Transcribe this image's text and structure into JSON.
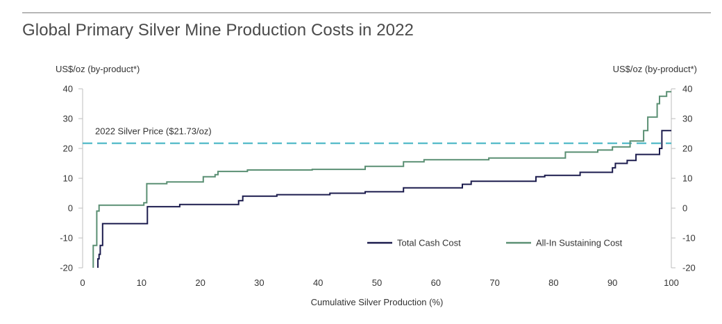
{
  "chart_data": {
    "type": "line",
    "title": "Global Primary Silver Mine Production Costs in 2022",
    "xlabel": "Cumulative Silver Production (%)",
    "ylabel_left": "US$/oz (by-product*)",
    "ylabel_right": "US$/oz (by-product*)",
    "xlim": [
      0,
      100
    ],
    "ylim": [
      -20,
      40
    ],
    "x_ticks": [
      0,
      10,
      20,
      30,
      40,
      50,
      60,
      70,
      80,
      90,
      100
    ],
    "y_ticks": [
      -20,
      -10,
      0,
      10,
      20,
      30,
      40
    ],
    "reference_line": {
      "label": "2022 Silver Price ($21.73/oz)",
      "value": 21.73,
      "color": "#3ab0c0"
    },
    "legend_position": "bottom-right",
    "series": [
      {
        "name": "Total Cash Cost",
        "color": "#1b1b4d",
        "points": [
          [
            2.6,
            -20
          ],
          [
            2.6,
            -17
          ],
          [
            2.8,
            -17
          ],
          [
            2.8,
            -15.5
          ],
          [
            3.0,
            -15.5
          ],
          [
            3.0,
            -12.5
          ],
          [
            3.4,
            -12.5
          ],
          [
            3.4,
            -5.2
          ],
          [
            11.0,
            -5.2
          ],
          [
            11.0,
            0.5
          ],
          [
            16.5,
            0.5
          ],
          [
            16.5,
            1.2
          ],
          [
            26.5,
            1.2
          ],
          [
            26.5,
            2.5
          ],
          [
            27.2,
            2.5
          ],
          [
            27.2,
            4.0
          ],
          [
            33.0,
            4.0
          ],
          [
            33.0,
            4.5
          ],
          [
            42.0,
            4.5
          ],
          [
            42.0,
            5.0
          ],
          [
            48.0,
            5.0
          ],
          [
            48.0,
            5.5
          ],
          [
            54.5,
            5.5
          ],
          [
            54.5,
            6.8
          ],
          [
            64.5,
            6.8
          ],
          [
            64.5,
            8.0
          ],
          [
            66.0,
            8.0
          ],
          [
            66.0,
            9.0
          ],
          [
            77.0,
            9.0
          ],
          [
            77.0,
            10.5
          ],
          [
            78.5,
            10.5
          ],
          [
            78.5,
            11.0
          ],
          [
            84.5,
            11.0
          ],
          [
            84.5,
            12.0
          ],
          [
            90.0,
            12.0
          ],
          [
            90.0,
            13.5
          ],
          [
            90.5,
            13.5
          ],
          [
            90.5,
            15.0
          ],
          [
            92.5,
            15.0
          ],
          [
            92.5,
            16.0
          ],
          [
            94.0,
            16.0
          ],
          [
            94.0,
            18.0
          ],
          [
            98.0,
            18.0
          ],
          [
            98.0,
            20.0
          ],
          [
            98.4,
            20.0
          ],
          [
            98.4,
            26.0
          ],
          [
            100.0,
            26.0
          ]
        ]
      },
      {
        "name": "All-In Sustaining Cost",
        "color": "#5a8f73",
        "points": [
          [
            1.8,
            -20
          ],
          [
            1.8,
            -12.5
          ],
          [
            2.4,
            -12.5
          ],
          [
            2.4,
            -1.0
          ],
          [
            2.8,
            -1.0
          ],
          [
            2.8,
            1.0
          ],
          [
            10.4,
            1.0
          ],
          [
            10.4,
            1.8
          ],
          [
            10.9,
            1.8
          ],
          [
            10.9,
            8.2
          ],
          [
            14.3,
            8.2
          ],
          [
            14.3,
            8.8
          ],
          [
            20.5,
            8.8
          ],
          [
            20.5,
            10.5
          ],
          [
            22.5,
            10.5
          ],
          [
            22.5,
            11.2
          ],
          [
            23.0,
            11.2
          ],
          [
            23.0,
            12.3
          ],
          [
            28.0,
            12.3
          ],
          [
            28.0,
            12.8
          ],
          [
            39.0,
            12.8
          ],
          [
            39.0,
            13.0
          ],
          [
            48.0,
            13.0
          ],
          [
            48.0,
            14.0
          ],
          [
            54.5,
            14.0
          ],
          [
            54.5,
            15.5
          ],
          [
            58.0,
            15.5
          ],
          [
            58.0,
            16.2
          ],
          [
            69.0,
            16.2
          ],
          [
            69.0,
            16.8
          ],
          [
            82.0,
            16.8
          ],
          [
            82.0,
            18.8
          ],
          [
            87.5,
            18.8
          ],
          [
            87.5,
            19.5
          ],
          [
            90.0,
            19.5
          ],
          [
            90.0,
            20.5
          ],
          [
            93.0,
            20.5
          ],
          [
            93.0,
            22.5
          ],
          [
            95.3,
            22.5
          ],
          [
            95.3,
            26.0
          ],
          [
            96.0,
            26.0
          ],
          [
            96.0,
            30.5
          ],
          [
            97.6,
            30.5
          ],
          [
            97.6,
            35.0
          ],
          [
            98.0,
            35.0
          ],
          [
            98.0,
            37.5
          ],
          [
            99.2,
            37.5
          ],
          [
            99.2,
            39.0
          ],
          [
            100.0,
            39.0
          ]
        ]
      }
    ]
  }
}
